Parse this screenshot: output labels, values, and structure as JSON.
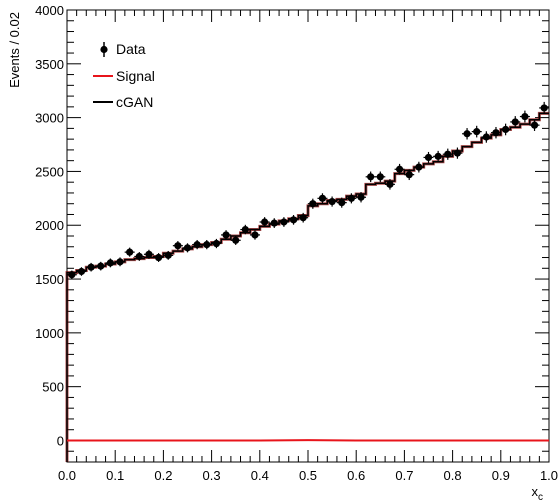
{
  "chart_data": {
    "type": "scatter",
    "title": "",
    "xlabel": "x",
    "xlabel_sub": "c",
    "ylabel": "Events / 0.02",
    "xlim": [
      0.0,
      1.0
    ],
    "ylim": [
      -200,
      4000
    ],
    "x_ticks": [
      "0.0",
      "0.1",
      "0.2",
      "0.3",
      "0.4",
      "0.5",
      "0.6",
      "0.7",
      "0.8",
      "0.9",
      "1.0"
    ],
    "y_ticks": [
      "0",
      "500",
      "1000",
      "1500",
      "2000",
      "2500",
      "3000",
      "3500",
      "4000"
    ],
    "legend": {
      "position": "top-left",
      "entries": [
        "Data",
        "Signal",
        "cGAN"
      ]
    },
    "colors": {
      "data": "#000000",
      "signal": "#e8141b",
      "cgan": "#000000",
      "cgan_shadow": "#8b0000"
    },
    "series": [
      {
        "name": "Data",
        "style": "points-with-errors",
        "x": [
          0.01,
          0.03,
          0.05,
          0.07,
          0.09,
          0.11,
          0.13,
          0.15,
          0.17,
          0.19,
          0.21,
          0.23,
          0.25,
          0.27,
          0.29,
          0.31,
          0.33,
          0.35,
          0.37,
          0.39,
          0.41,
          0.43,
          0.45,
          0.47,
          0.49,
          0.51,
          0.53,
          0.55,
          0.57,
          0.59,
          0.61,
          0.63,
          0.65,
          0.67,
          0.69,
          0.71,
          0.73,
          0.75,
          0.77,
          0.79,
          0.81,
          0.83,
          0.85,
          0.87,
          0.89,
          0.91,
          0.93,
          0.95,
          0.97,
          0.99
        ],
        "y": [
          1540,
          1570,
          1610,
          1620,
          1650,
          1660,
          1750,
          1710,
          1730,
          1700,
          1720,
          1810,
          1790,
          1820,
          1820,
          1830,
          1910,
          1860,
          1960,
          1910,
          2030,
          2020,
          2030,
          2050,
          2070,
          2200,
          2250,
          2220,
          2210,
          2250,
          2260,
          2450,
          2450,
          2380,
          2520,
          2470,
          2540,
          2630,
          2640,
          2660,
          2670,
          2850,
          2870,
          2820,
          2860,
          2890,
          2960,
          3010,
          2930,
          3090
        ],
        "err": [
          39,
          40,
          40,
          40,
          41,
          41,
          42,
          41,
          42,
          41,
          41,
          43,
          42,
          43,
          43,
          43,
          44,
          43,
          44,
          44,
          45,
          45,
          45,
          45,
          45,
          47,
          47,
          47,
          47,
          47,
          48,
          49,
          49,
          49,
          50,
          50,
          50,
          51,
          51,
          52,
          52,
          53,
          54,
          53,
          53,
          54,
          54,
          55,
          54,
          56
        ]
      },
      {
        "name": "Signal",
        "style": "step-line",
        "x": [
          0.0,
          0.1,
          0.2,
          0.3,
          0.4,
          0.5,
          0.6,
          0.7,
          0.8,
          0.9,
          1.0
        ],
        "y": [
          0,
          0,
          0,
          0,
          0,
          3,
          0,
          0,
          0,
          0,
          0
        ]
      },
      {
        "name": "cGAN",
        "style": "step-line",
        "bin_edges": [
          0.0,
          0.02,
          0.04,
          0.06,
          0.08,
          0.1,
          0.12,
          0.14,
          0.16,
          0.18,
          0.2,
          0.22,
          0.24,
          0.26,
          0.28,
          0.3,
          0.32,
          0.34,
          0.36,
          0.38,
          0.4,
          0.42,
          0.44,
          0.46,
          0.48,
          0.5,
          0.52,
          0.54,
          0.56,
          0.58,
          0.6,
          0.62,
          0.64,
          0.66,
          0.68,
          0.7,
          0.72,
          0.74,
          0.76,
          0.78,
          0.8,
          0.82,
          0.84,
          0.86,
          0.88,
          0.9,
          0.92,
          0.94,
          0.96,
          0.98,
          1.0
        ],
        "y": [
          1560,
          1580,
          1610,
          1620,
          1640,
          1660,
          1680,
          1690,
          1700,
          1710,
          1740,
          1760,
          1780,
          1800,
          1820,
          1840,
          1870,
          1900,
          1930,
          1960,
          1990,
          2010,
          2040,
          2060,
          2090,
          2180,
          2200,
          2230,
          2240,
          2270,
          2290,
          2380,
          2390,
          2410,
          2480,
          2510,
          2540,
          2570,
          2590,
          2640,
          2690,
          2730,
          2770,
          2810,
          2840,
          2890,
          2910,
          2940,
          2980,
          3040
        ]
      }
    ]
  }
}
